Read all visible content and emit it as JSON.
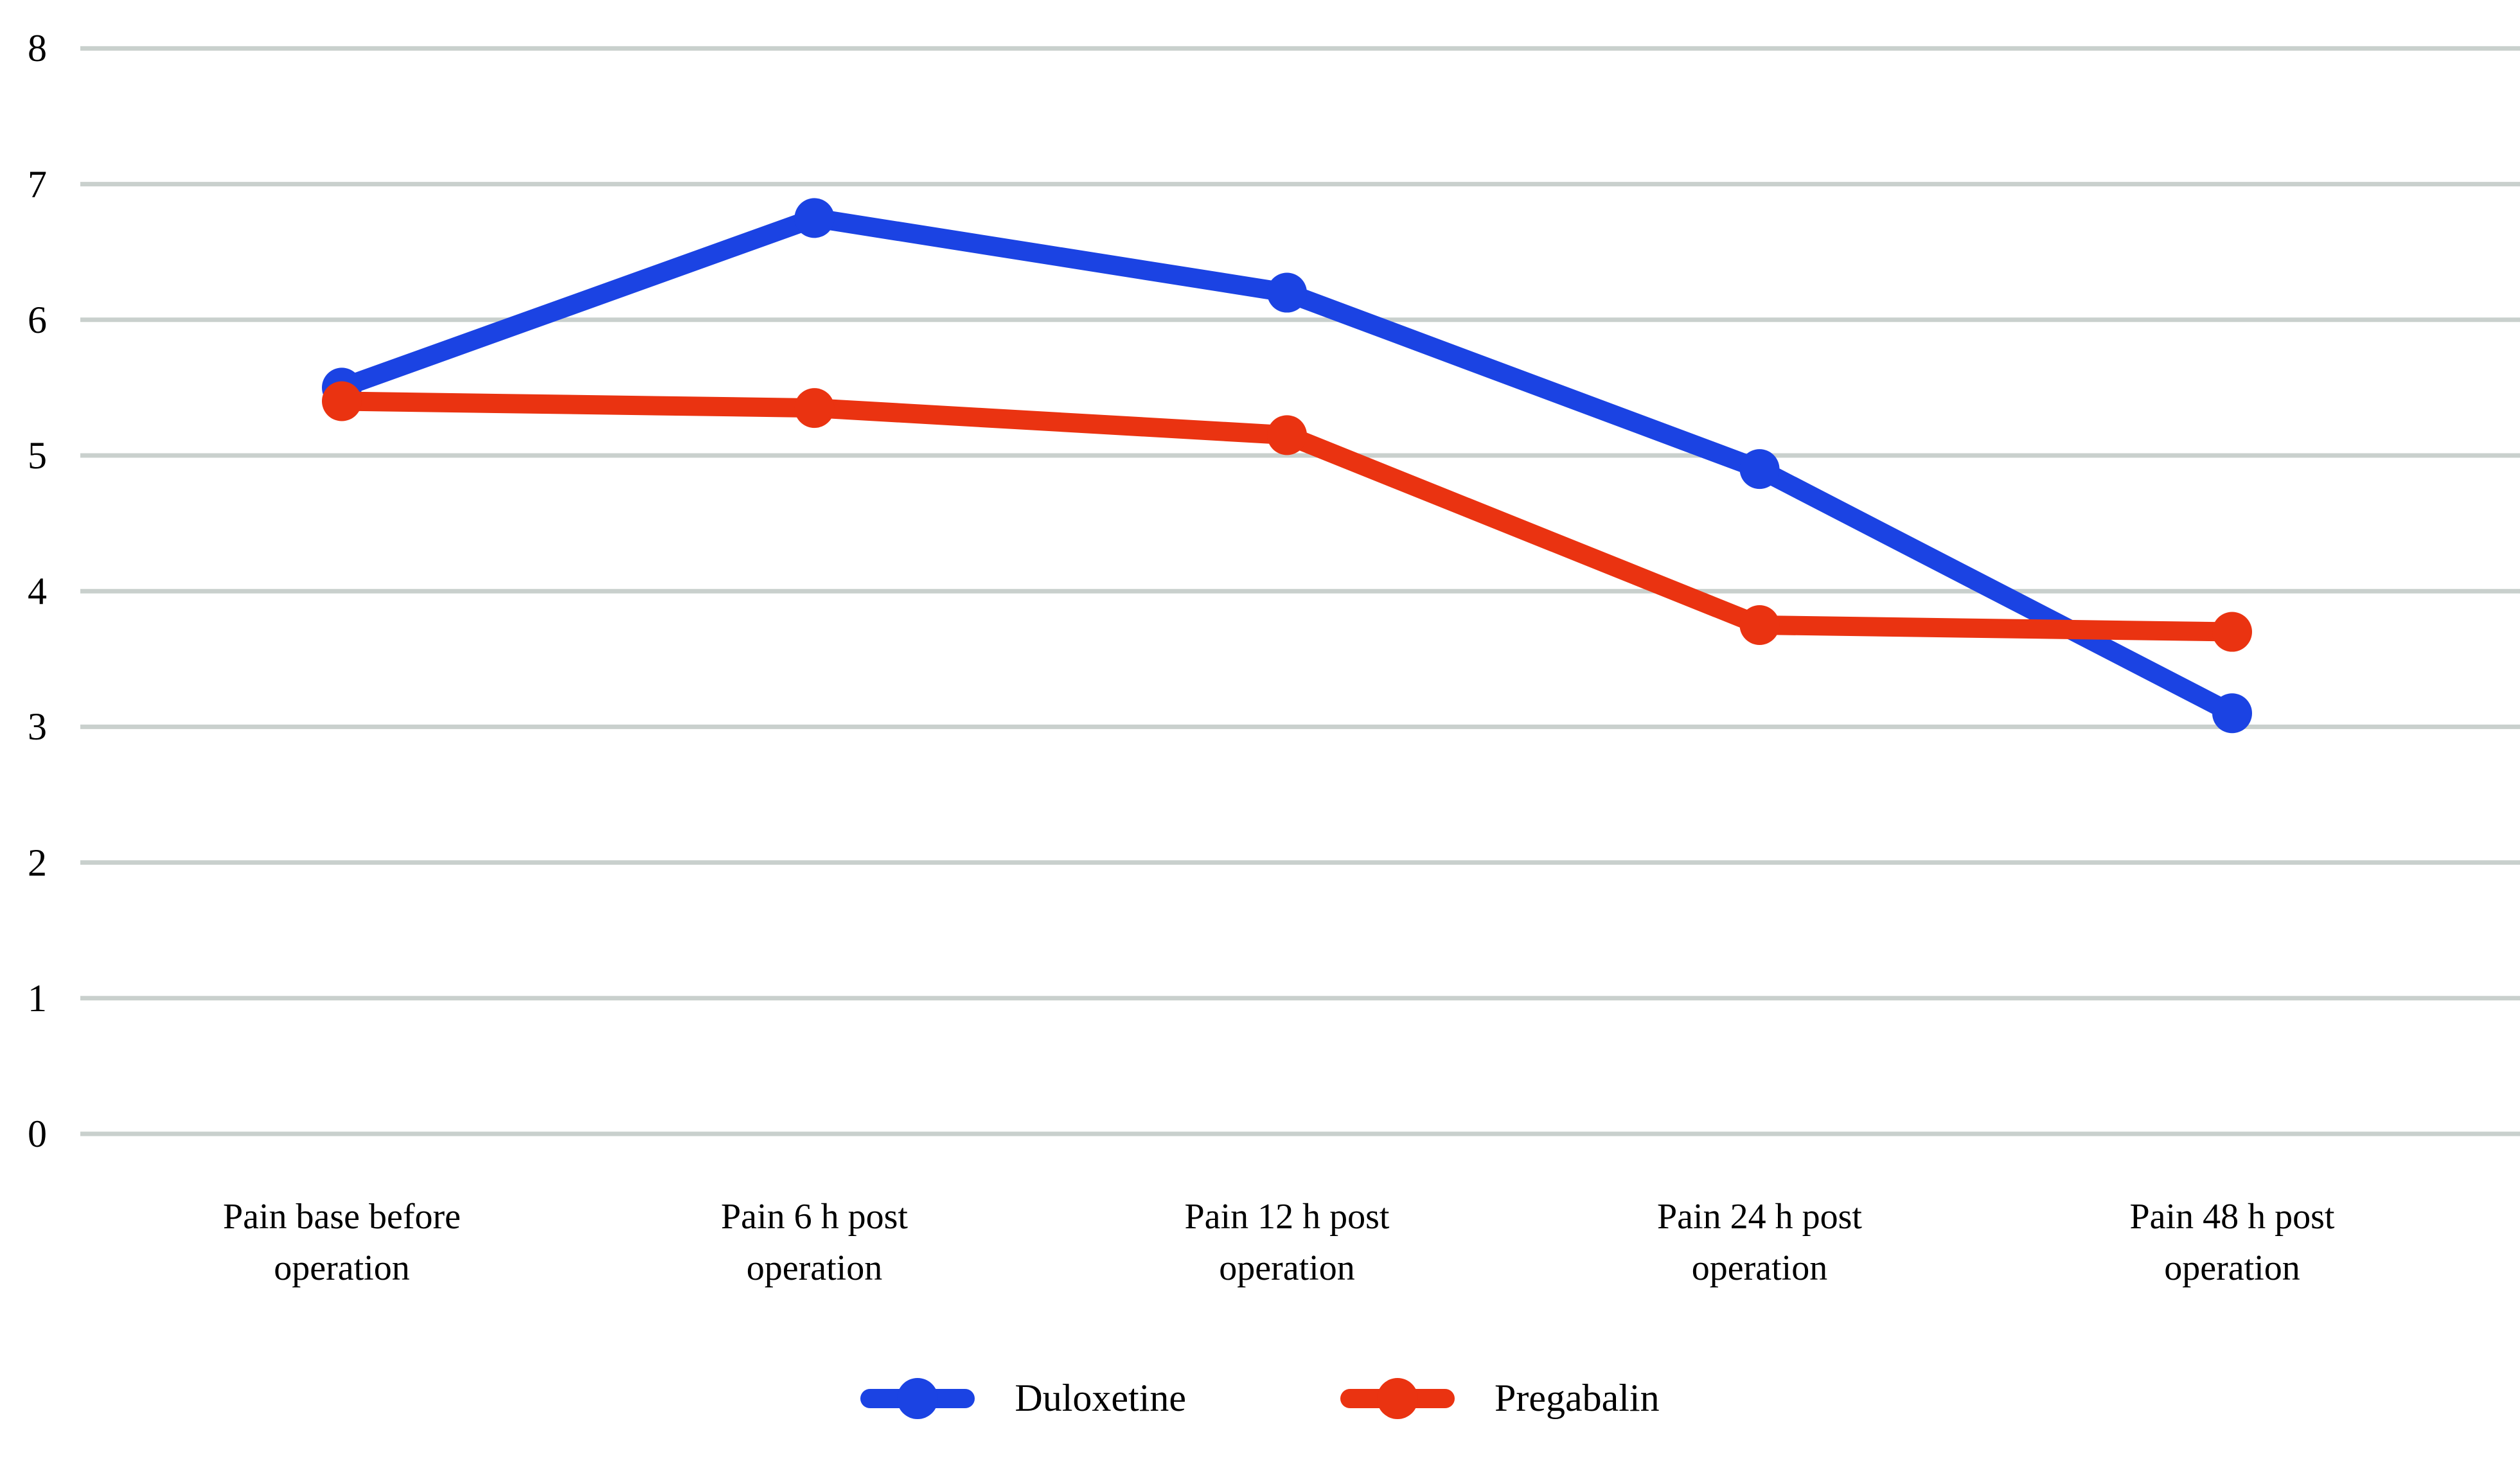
{
  "chart_data": {
    "type": "line",
    "title": "",
    "xlabel": "",
    "ylabel": "",
    "ylim": [
      0,
      8
    ],
    "yticks": [
      0,
      1,
      2,
      3,
      4,
      5,
      6,
      7,
      8
    ],
    "grid": true,
    "legend_position": "bottom",
    "categories": [
      "Pain base before operation",
      "Pain 6 h post operation",
      "Pain 12 h post operation",
      "Pain 24 h post operation",
      "Pain 48 h post operation"
    ],
    "category_lines": [
      [
        "Pain base before",
        "operation"
      ],
      [
        "Pain 6 h post",
        "operation"
      ],
      [
        "Pain 12 h post",
        "operation"
      ],
      [
        "Pain 24 h post",
        "operation"
      ],
      [
        "Pain 48 h post",
        "operation"
      ]
    ],
    "series": [
      {
        "name": "Duloxetine",
        "color": "#1b43e3",
        "values": [
          5.5,
          6.75,
          6.2,
          4.9,
          3.1
        ]
      },
      {
        "name": "Pregabalin",
        "color": "#ea3311",
        "values": [
          5.4,
          5.35,
          5.15,
          3.75,
          3.7
        ]
      }
    ],
    "colors": {
      "gridline": "#c9d0cd",
      "text": "#000000",
      "background": "#ffffff"
    }
  }
}
